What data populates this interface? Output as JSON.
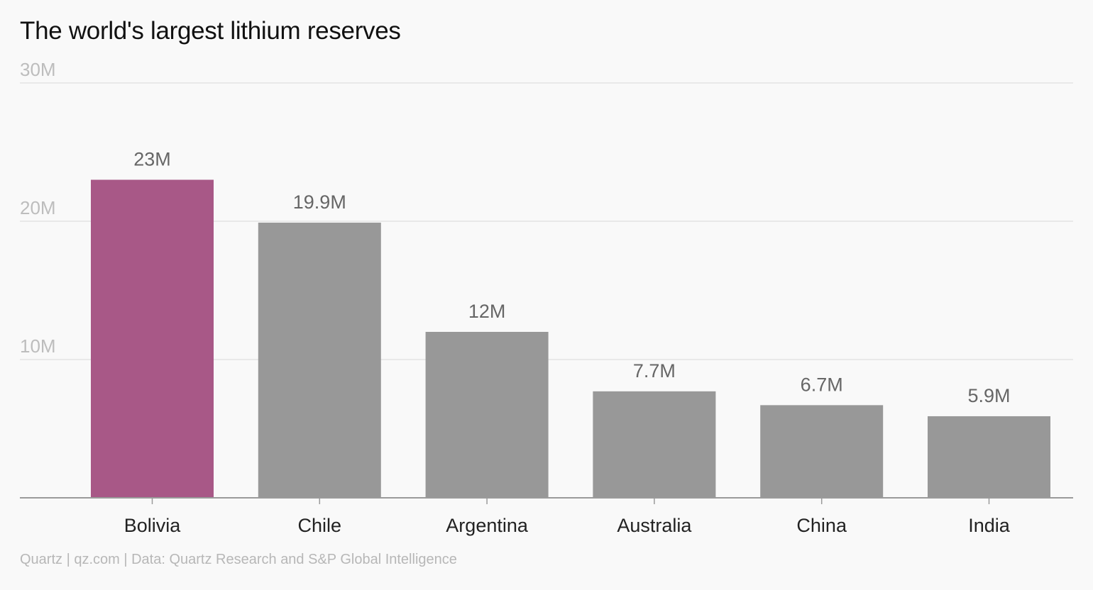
{
  "chart_data": {
    "type": "bar",
    "title": "The world's largest lithium reserves",
    "categories": [
      "Bolivia",
      "Chile",
      "Argentina",
      "Australia",
      "China",
      "India"
    ],
    "values": [
      23,
      19.9,
      12,
      7.7,
      6.7,
      5.9
    ],
    "value_labels": [
      "23M",
      "19.9M",
      "12M",
      "7.7M",
      "6.7M",
      "5.9M"
    ],
    "yticks": [
      10,
      20,
      30
    ],
    "ytick_labels": [
      "10M",
      "20M",
      "30M"
    ],
    "ylim": [
      0,
      30
    ],
    "xlabel": "",
    "ylabel": "",
    "grid": true,
    "highlight_category": "Bolivia",
    "colors": {
      "highlight": "#a85887",
      "default": "#989898",
      "grid": "#e4e4e4",
      "axis": "#9a9a9a"
    }
  },
  "source": "Quartz | qz.com | Data: Quartz Research and S&P Global Intelligence"
}
